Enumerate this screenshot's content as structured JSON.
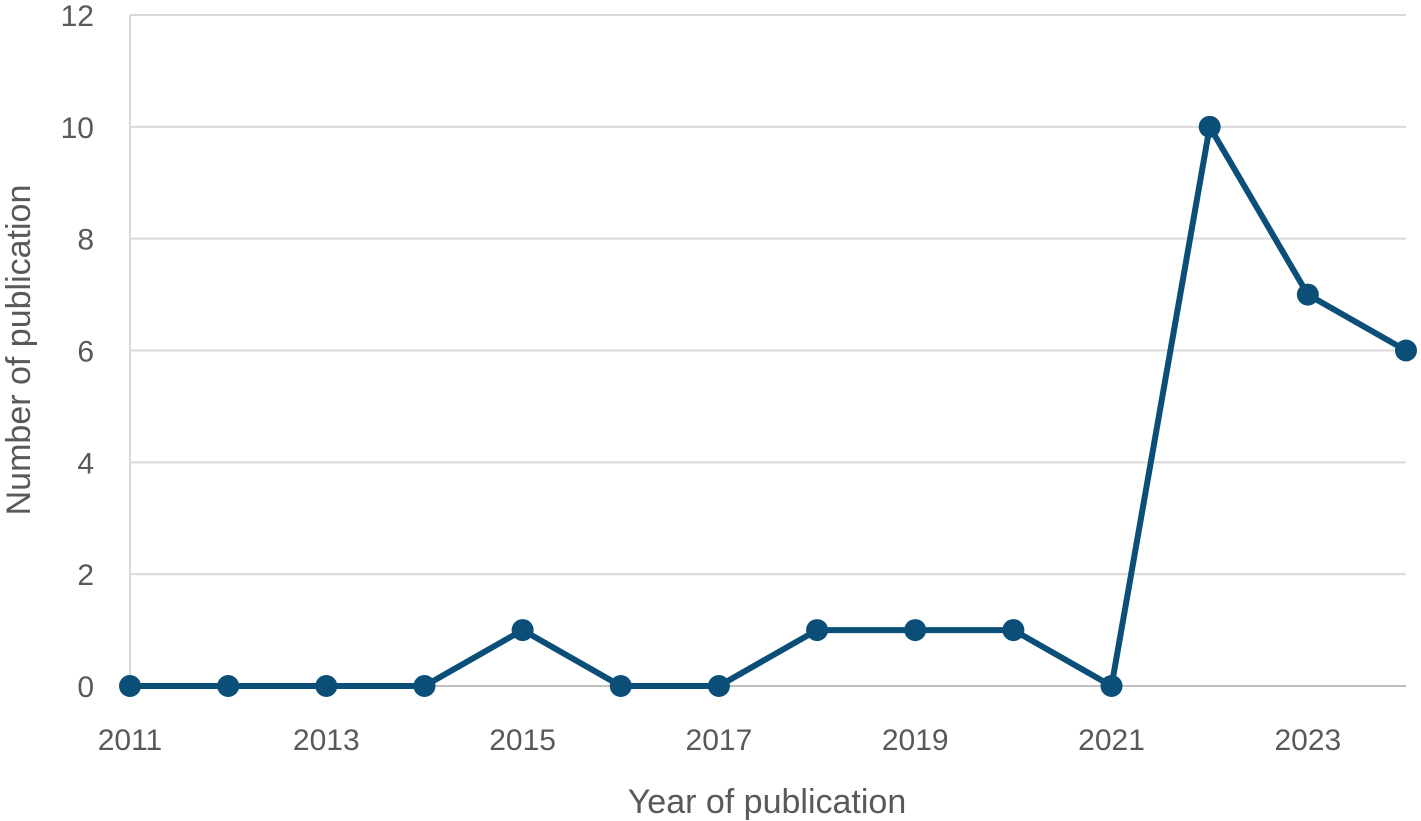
{
  "chart_data": {
    "type": "line",
    "title": "",
    "xlabel": "Year of publication",
    "ylabel": "Number of publication",
    "x": [
      2011,
      2012,
      2013,
      2014,
      2015,
      2016,
      2017,
      2018,
      2019,
      2020,
      2021,
      2022,
      2023,
      2024
    ],
    "series": [
      {
        "values": [
          0,
          0,
          0,
          0,
          1,
          0,
          0,
          1,
          1,
          1,
          0,
          10,
          7,
          6
        ]
      }
    ],
    "xlim": [
      2011,
      2024
    ],
    "ylim": [
      0,
      12
    ],
    "x_ticks": [
      "2011",
      "2013",
      "2015",
      "2017",
      "2019",
      "2021",
      "2023"
    ],
    "y_ticks": [
      "0",
      "2",
      "4",
      "6",
      "8",
      "10",
      "12"
    ],
    "grid": "horizontal",
    "legend": "none",
    "colors": {
      "line": "#0B4F79",
      "grid": "#D9D9D9",
      "axis": "#BFBFBF",
      "text": "#595959"
    }
  }
}
